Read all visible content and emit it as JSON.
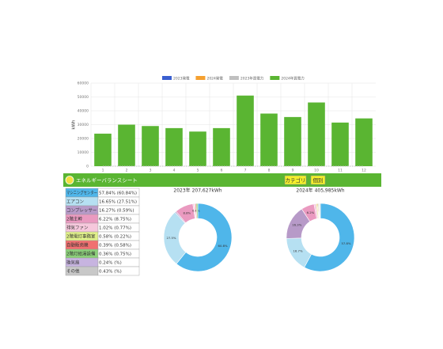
{
  "header": {
    "title": "エネルギーバランスシート",
    "buttons": [
      "カテゴリ",
      "個別"
    ]
  },
  "table": {
    "rows": [
      [
        "マシニングセンター",
        "57.84% (60.84%)"
      ],
      [
        "エアコン",
        "16.65% (27.51%)"
      ],
      [
        "コンプレッサー",
        "16.27% (0.59%)"
      ],
      [
        "2階主幹",
        "6.22% (8.75%)"
      ],
      [
        "排気ファン",
        "1.02% (0.77%)"
      ],
      [
        "2階電灯事務室",
        "0.58% (0.22%)"
      ],
      [
        "自動販売機",
        "0.39% (0.58%)"
      ],
      [
        "2階灯給湯設備",
        "0.36% (0.75%)"
      ],
      [
        "換気扇",
        "0.24% (%)"
      ],
      [
        "その他",
        "0.43% (%)"
      ]
    ],
    "colors": [
      "#4fb6ea",
      "#b6e0f2",
      "#b79ac8",
      "#ea9ac0",
      "#f6c8dc",
      "#e0f08a",
      "#f07070",
      "#8ccf7a",
      "#c7b4e0",
      "#c8c8c8"
    ]
  },
  "chart_data": [
    {
      "type": "bar",
      "y_label": "kWh",
      "categories": [
        "1",
        "2",
        "3",
        "4",
        "5",
        "6",
        "7",
        "8",
        "9",
        "10",
        "11",
        "12"
      ],
      "series": [
        {
          "name": "2023発電",
          "color": "#3a5fd0",
          "kind": "line",
          "values": [
            0,
            0,
            0,
            0,
            0,
            0,
            0,
            0,
            0,
            0,
            0,
            0
          ]
        },
        {
          "name": "2024発電",
          "color": "#f5a030",
          "kind": "line",
          "values": [
            0,
            0,
            0,
            0,
            0,
            0,
            0,
            0,
            0,
            0,
            0,
            0
          ]
        },
        {
          "name": "2023年買電力",
          "color": "#c0c0c0",
          "kind": "line",
          "values": [
            0,
            0,
            0,
            0,
            0,
            0,
            0,
            0,
            0,
            0,
            0,
            0
          ]
        },
        {
          "name": "2024年買電力",
          "color": "#5ab532",
          "kind": "bar",
          "values": [
            23500,
            30000,
            29000,
            27500,
            25000,
            27500,
            51000,
            38000,
            35500,
            46000,
            31500,
            34500
          ]
        }
      ],
      "ylim": [
        0,
        60000
      ],
      "yticks": [
        0,
        10000,
        20000,
        30000,
        40000,
        50000,
        60000
      ],
      "grid": true
    },
    {
      "type": "pie",
      "title": "2023年 207,627kWh",
      "values": [
        60.84,
        27.51,
        0.59,
        8.75,
        0.77,
        0.22,
        0.58,
        0.75
      ],
      "value_labels": [
        "60.8%",
        "27.5%",
        null,
        "8.8%",
        null,
        null,
        "0.6%",
        null
      ]
    },
    {
      "type": "pie",
      "title": "2024年 405,985kWh",
      "values": [
        57.84,
        16.65,
        16.27,
        6.22,
        1.02,
        0.58,
        0.39,
        0.36,
        0.24,
        0.43
      ],
      "value_labels": [
        "57.8%",
        "16.7%",
        "16.3%",
        "6.2%",
        null,
        null,
        null,
        null,
        null,
        null
      ]
    }
  ]
}
